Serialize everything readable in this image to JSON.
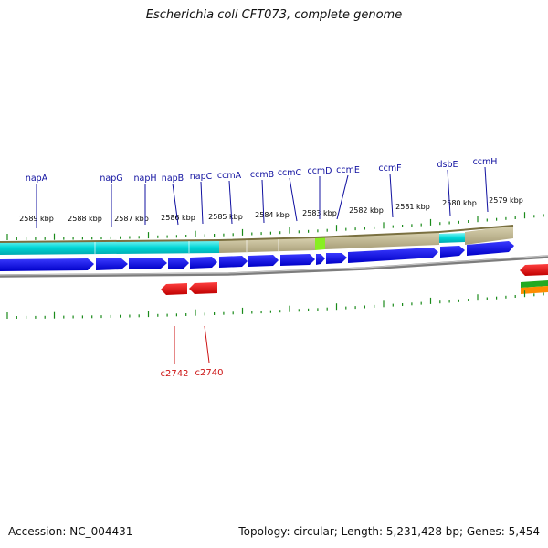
{
  "title": "Escherichia coli CFT073, complete genome",
  "footer": {
    "accession": "Accession: NC_004431",
    "topology": "Topology: circular; Length: 5,231,428 bp; Genes: 5,454"
  },
  "kbp_labels": [
    "2589 kbp",
    "2588 kbp",
    "2587 kbp",
    "2586 kbp",
    "2585 kbp",
    "2584 kbp",
    "2583 kbp",
    "2582 kbp",
    "2581 kbp",
    "2580 kbp",
    "2579 kbp"
  ],
  "top_genes": [
    "napA",
    "napG",
    "napH",
    "napB",
    "napC",
    "ccmA",
    "ccmB",
    "ccmC",
    "ccmD",
    "ccmE",
    "ccmF",
    "dsbE",
    "ccmH"
  ],
  "bottom_genes": [
    "c2742",
    "c2740"
  ],
  "colors": {
    "cds_forward": "#0000ee",
    "cds_reverse": "#ee0000",
    "cog_cyan": "#00dddd",
    "cog_khaki": "#bdb38a",
    "cog_green": "#88ee22",
    "ticks": "#1a8a1a",
    "backbone": "#888888"
  }
}
